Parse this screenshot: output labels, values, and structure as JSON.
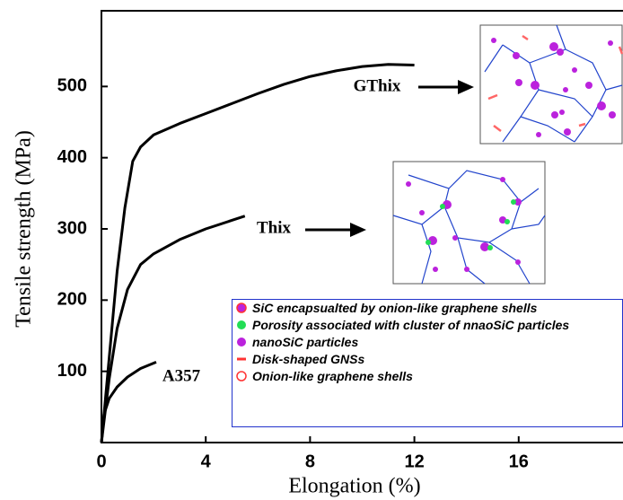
{
  "chart_data": {
    "type": "line",
    "xlabel": "Elongation (%)",
    "ylabel": "Tensile strength (MPa)",
    "xlim": [
      0,
      20
    ],
    "ylim": [
      0,
      600
    ],
    "xticks": [
      0,
      4,
      8,
      12,
      16
    ],
    "yticks": [
      100,
      200,
      300,
      400,
      500
    ],
    "series": [
      {
        "name": "GThix",
        "color": "#000000",
        "x": [
          0,
          0.3,
          0.6,
          0.9,
          1.2,
          1.5,
          2,
          3,
          4,
          5,
          6,
          7,
          8,
          9,
          10,
          11,
          12
        ],
        "values": [
          0,
          120,
          240,
          330,
          395,
          415,
          432,
          448,
          462,
          476,
          490,
          503,
          514,
          522,
          528,
          531,
          530
        ]
      },
      {
        "name": "Thix",
        "color": "#000000",
        "x": [
          0,
          0.3,
          0.6,
          1,
          1.5,
          2,
          3,
          4,
          5,
          5.5
        ],
        "values": [
          0,
          90,
          160,
          215,
          250,
          265,
          285,
          300,
          312,
          318
        ]
      },
      {
        "name": "A357",
        "color": "#000000",
        "x": [
          0,
          0.1,
          0.3,
          0.6,
          1,
          1.5,
          2.1
        ],
        "values": [
          0,
          40,
          62,
          78,
          92,
          104,
          113
        ]
      }
    ],
    "legend": [
      "SiC encapsualted by onion-like graphene shells",
      "Porosity associated with cluster of nnaoSiC particles",
      "nanoSiC particles",
      "Disk-shaped GNSs",
      "Onion-like graphene shells"
    ]
  }
}
